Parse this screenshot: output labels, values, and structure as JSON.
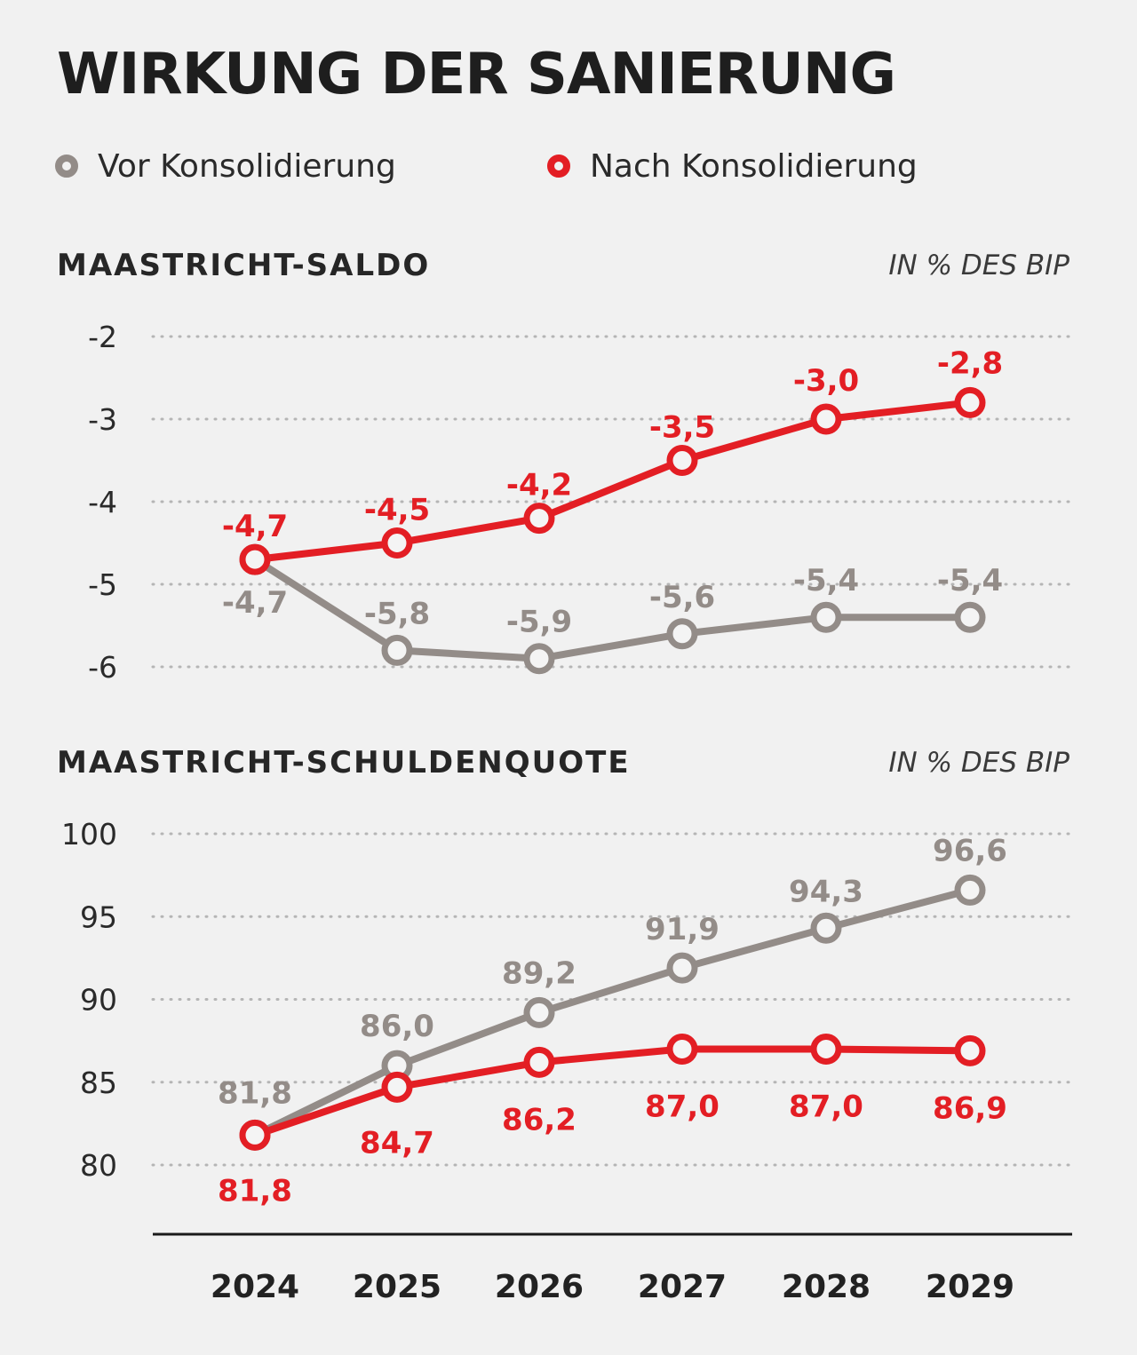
{
  "title": "WIRKUNG DER SANIERUNG",
  "legend": [
    {
      "label": "Vor Konsolidierung",
      "color": "#938c88"
    },
    {
      "label": "Nach Konsolidierung",
      "color": "#e31e24"
    }
  ],
  "chart_data": [
    {
      "type": "line",
      "title": "MAASTRICHT-SALDO",
      "unit": "IN % DES BIP",
      "x": [
        "2024",
        "2025",
        "2026",
        "2027",
        "2028",
        "2029"
      ],
      "ylim": [
        -6,
        -2
      ],
      "yticks": [
        -2,
        -3,
        -4,
        -5,
        -6
      ],
      "ytick_labels": [
        "-2",
        "-3",
        "-4",
        "-5",
        "-6"
      ],
      "grid": "dotted horizontal",
      "series": [
        {
          "name": "Vor Konsolidierung",
          "color": "#938c88",
          "values": [
            -4.7,
            -5.8,
            -5.9,
            -5.6,
            -5.4,
            -5.4
          ],
          "labels": [
            "-4,7",
            "-5,8",
            "-5,9",
            "-5,6",
            "-5,4",
            "-5,4"
          ]
        },
        {
          "name": "Nach Konsolidierung",
          "color": "#e31e24",
          "values": [
            -4.7,
            -4.5,
            -4.2,
            -3.5,
            -3.0,
            -2.8
          ],
          "labels": [
            "-4,7",
            "-4,5",
            "-4,2",
            "-3,5",
            "-3,0",
            "-2,8"
          ]
        }
      ]
    },
    {
      "type": "line",
      "title": "MAASTRICHT-SCHULDENQUOTE",
      "unit": "IN % DES BIP",
      "x": [
        "2024",
        "2025",
        "2026",
        "2027",
        "2028",
        "2029"
      ],
      "ylim": [
        80,
        100
      ],
      "yticks": [
        100,
        95,
        90,
        85,
        80
      ],
      "ytick_labels": [
        "100",
        "95",
        "90",
        "85",
        "80"
      ],
      "grid": "dotted horizontal",
      "series": [
        {
          "name": "Vor Konsolidierung",
          "color": "#938c88",
          "values": [
            81.8,
            86.0,
            89.2,
            91.9,
            94.3,
            96.6
          ],
          "labels": [
            "81,8",
            "86,0",
            "89,2",
            "91,9",
            "94,3",
            "96,6"
          ]
        },
        {
          "name": "Nach Konsolidierung",
          "color": "#e31e24",
          "values": [
            81.8,
            84.7,
            86.2,
            87.0,
            87.0,
            86.9
          ],
          "labels": [
            "81,8",
            "84,7",
            "86,2",
            "87,0",
            "87,0",
            "86,9"
          ]
        }
      ]
    }
  ]
}
